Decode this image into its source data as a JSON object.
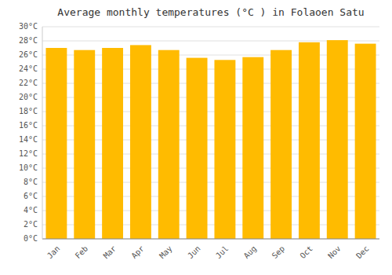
{
  "chart_data": {
    "type": "bar",
    "title": "Average monthly temperatures (°C ) in Folaoen Satu",
    "categories": [
      "Jan",
      "Feb",
      "Mar",
      "Apr",
      "May",
      "Jun",
      "Jul",
      "Aug",
      "Sep",
      "Oct",
      "Nov",
      "Dec"
    ],
    "values": [
      27.0,
      26.7,
      27.0,
      27.4,
      26.7,
      25.6,
      25.3,
      25.7,
      26.7,
      27.8,
      28.1,
      27.6
    ],
    "color": "#FFBB00",
    "ylim": [
      0,
      30
    ],
    "yticks": [
      {
        "value": 0,
        "label": "0°C"
      },
      {
        "value": 2,
        "label": "2°C"
      },
      {
        "value": 4,
        "label": "4°C"
      },
      {
        "value": 6,
        "label": "6°C"
      },
      {
        "value": 8,
        "label": "8°C"
      },
      {
        "value": 10,
        "label": "10°C"
      },
      {
        "value": 12,
        "label": "12°C"
      },
      {
        "value": 14,
        "label": "14°C"
      },
      {
        "value": 16,
        "label": "16°C"
      },
      {
        "value": 18,
        "label": "18°C"
      },
      {
        "value": 20,
        "label": "20°C"
      },
      {
        "value": 22,
        "label": "22°C"
      },
      {
        "value": 24,
        "label": "24°C"
      },
      {
        "value": 26,
        "label": "26°C"
      },
      {
        "value": 28,
        "label": "28°C"
      },
      {
        "value": 30,
        "label": "30°C"
      }
    ],
    "grid": true
  }
}
